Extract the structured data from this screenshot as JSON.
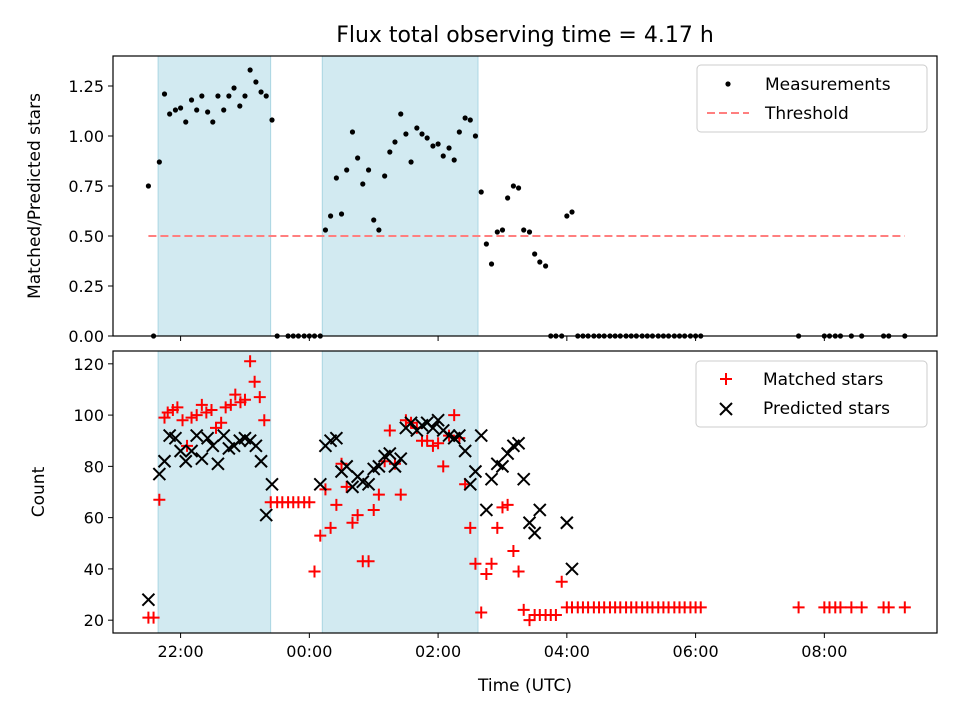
{
  "chart_data": [
    {
      "type": "scatter",
      "title": "Flux total observing time = 4.17 h",
      "ylabel": "Matched/Predicted stars",
      "ylim": [
        0,
        1.4
      ],
      "yticks": [
        0.0,
        0.25,
        0.5,
        0.75,
        1.0,
        1.25
      ],
      "ytick_labels": [
        "0.00",
        "0.25",
        "0.50",
        "0.75",
        "1.00",
        "1.25"
      ],
      "xlim_hours": [
        -3.05,
        9.75
      ],
      "shaded_spans_hours": [
        [
          -2.35,
          -0.6
        ],
        [
          0.2,
          2.62
        ]
      ],
      "shade_color": "#add8e6",
      "legend": {
        "placement": "upper right",
        "entries": [
          "Measurements",
          "Threshold"
        ]
      },
      "series": [
        {
          "name": "Measurements",
          "marker": "dot",
          "color": "#000000",
          "x": [
            -2.5,
            -2.42,
            -2.33,
            -2.25,
            -2.17,
            -2.08,
            -2.0,
            -1.92,
            -1.83,
            -1.75,
            -1.67,
            -1.58,
            -1.5,
            -1.42,
            -1.33,
            -1.25,
            -1.17,
            -1.08,
            -1.0,
            -0.92,
            -0.83,
            -0.75,
            -0.67,
            -0.58,
            -0.5,
            -0.33,
            -0.25,
            -0.17,
            -0.08,
            0.0,
            0.08,
            0.17,
            0.25,
            0.33,
            0.42,
            0.5,
            0.58,
            0.67,
            0.75,
            0.83,
            0.92,
            1.0,
            1.08,
            1.17,
            1.25,
            1.33,
            1.42,
            1.5,
            1.58,
            1.67,
            1.75,
            1.83,
            1.92,
            2.0,
            2.08,
            2.17,
            2.25,
            2.33,
            2.42,
            2.5,
            2.58,
            2.67,
            2.75,
            2.83,
            2.92,
            3.0,
            3.08,
            3.17,
            3.25,
            3.33,
            3.42,
            3.5,
            3.58,
            3.67,
            3.75,
            3.83,
            3.92,
            4.0,
            4.08,
            4.17,
            4.25,
            4.33,
            4.42,
            4.5,
            4.58,
            4.67,
            4.75,
            4.83,
            4.92,
            5.0,
            5.08,
            5.17,
            5.25,
            5.33,
            5.42,
            5.5,
            5.58,
            5.67,
            5.75,
            5.83,
            5.92,
            6.0,
            6.08,
            7.6,
            8.0,
            8.08,
            8.17,
            8.25,
            8.42,
            8.58,
            8.92,
            9.0,
            9.25
          ],
          "y": [
            0.75,
            0.0,
            0.87,
            1.21,
            1.11,
            1.13,
            1.14,
            1.07,
            1.18,
            1.13,
            1.2,
            1.12,
            1.07,
            1.2,
            1.13,
            1.2,
            1.24,
            1.15,
            1.2,
            1.33,
            1.27,
            1.22,
            1.2,
            1.08,
            0.0,
            0.0,
            0.0,
            0.0,
            0.0,
            0.0,
            0.0,
            0.0,
            0.53,
            0.6,
            0.79,
            0.61,
            0.83,
            1.02,
            0.89,
            0.76,
            0.83,
            0.58,
            0.53,
            0.8,
            0.92,
            0.97,
            1.11,
            1.01,
            0.87,
            1.04,
            1.01,
            0.99,
            0.95,
            0.96,
            0.9,
            0.94,
            0.88,
            1.02,
            1.09,
            1.08,
            1.0,
            0.72,
            0.46,
            0.36,
            0.52,
            0.53,
            0.69,
            0.75,
            0.74,
            0.53,
            0.52,
            0.41,
            0.37,
            0.35,
            0.0,
            0.0,
            0.0,
            0.6,
            0.62,
            0.0,
            0.0,
            0.0,
            0.0,
            0.0,
            0.0,
            0.0,
            0.0,
            0.0,
            0.0,
            0.0,
            0.0,
            0.0,
            0.0,
            0.0,
            0.0,
            0.0,
            0.0,
            0.0,
            0.0,
            0.0,
            0.0,
            0.0,
            0.0,
            0.0,
            0.0,
            0.0,
            0.0,
            0.0,
            0.0,
            0.0,
            0.0,
            0.0,
            0.0
          ]
        },
        {
          "name": "Threshold",
          "marker": "dashed-line",
          "color": "#ff7f7f",
          "x": [
            -2.5,
            9.25
          ],
          "y": [
            0.5,
            0.5
          ]
        }
      ]
    },
    {
      "type": "scatter",
      "ylabel": "Count",
      "xlabel": "Time (UTC)",
      "ylim": [
        15,
        125
      ],
      "yticks": [
        20,
        40,
        60,
        80,
        100,
        120
      ],
      "ytick_labels": [
        "20",
        "40",
        "60",
        "80",
        "100",
        "120"
      ],
      "xticks_hours": [
        -2,
        0,
        2,
        4,
        6,
        8
      ],
      "xtick_labels": [
        "22:00",
        "00:00",
        "02:00",
        "04:00",
        "06:00",
        "08:00"
      ],
      "xlim_hours": [
        -3.05,
        9.75
      ],
      "shaded_spans_hours": [
        [
          -2.35,
          -0.6
        ],
        [
          0.2,
          2.62
        ]
      ],
      "shade_color": "#add8e6",
      "legend": {
        "placement": "upper right",
        "entries": [
          "Matched stars",
          "Predicted stars"
        ]
      },
      "series": [
        {
          "name": "Matched stars",
          "marker": "plus",
          "color": "#ff0000",
          "x": [
            -2.5,
            -2.42,
            -2.33,
            -2.25,
            -2.2,
            -2.12,
            -2.05,
            -1.97,
            -1.9,
            -1.83,
            -1.75,
            -1.67,
            -1.6,
            -1.52,
            -1.45,
            -1.37,
            -1.3,
            -1.22,
            -1.15,
            -1.07,
            -1.0,
            -0.92,
            -0.85,
            -0.77,
            -0.7,
            -0.6,
            -0.5,
            -0.42,
            -0.33,
            -0.25,
            -0.17,
            -0.08,
            0.0,
            0.08,
            0.17,
            0.25,
            0.33,
            0.42,
            0.5,
            0.58,
            0.67,
            0.75,
            0.83,
            0.92,
            1.0,
            1.08,
            1.17,
            1.25,
            1.33,
            1.42,
            1.5,
            1.58,
            1.67,
            1.75,
            1.83,
            1.92,
            2.0,
            2.08,
            2.17,
            2.25,
            2.33,
            2.42,
            2.5,
            2.58,
            2.67,
            2.75,
            2.83,
            2.92,
            3.0,
            3.08,
            3.17,
            3.25,
            3.33,
            3.42,
            3.5,
            3.58,
            3.67,
            3.75,
            3.83,
            3.92,
            4.0,
            4.08,
            4.17,
            4.25,
            4.33,
            4.42,
            4.5,
            4.58,
            4.67,
            4.75,
            4.83,
            4.92,
            5.0,
            5.08,
            5.17,
            5.25,
            5.33,
            5.42,
            5.5,
            5.58,
            5.67,
            5.75,
            5.83,
            5.92,
            6.0,
            6.08,
            7.6,
            8.0,
            8.08,
            8.17,
            8.25,
            8.42,
            8.58,
            8.92,
            9.0,
            9.25
          ],
          "y": [
            21,
            21,
            67,
            99,
            101,
            102,
            103,
            98,
            88,
            99,
            100,
            104,
            101,
            102,
            95,
            97,
            103,
            104,
            108,
            105,
            106,
            121,
            113,
            107,
            98,
            66,
            66,
            66,
            66,
            66,
            66,
            66,
            66,
            39,
            53,
            71,
            56,
            65,
            81,
            72,
            58,
            61,
            43,
            43,
            63,
            69,
            82,
            94,
            81,
            69,
            98,
            97,
            95,
            90,
            90,
            88,
            89,
            80,
            92,
            100,
            91,
            73,
            56,
            42,
            23,
            38,
            42,
            56,
            64,
            65,
            47,
            39,
            24,
            20,
            22,
            22,
            22,
            22,
            22,
            35,
            25,
            25,
            25,
            25,
            25,
            25,
            25,
            25,
            25,
            25,
            25,
            25,
            25,
            25,
            25,
            25,
            25,
            25,
            25,
            25,
            25,
            25,
            25,
            25,
            25,
            25,
            25,
            25,
            25,
            25,
            25,
            25,
            25,
            25,
            25,
            25
          ]
        },
        {
          "name": "Predicted stars",
          "marker": "x",
          "color": "#000000",
          "x": [
            -2.5,
            -2.33,
            -2.25,
            -2.17,
            -2.08,
            -2.0,
            -1.92,
            -1.83,
            -1.75,
            -1.67,
            -1.58,
            -1.5,
            -1.42,
            -1.33,
            -1.25,
            -1.17,
            -1.08,
            -1.0,
            -0.92,
            -0.83,
            -0.75,
            -0.67,
            -0.58,
            0.17,
            0.25,
            0.33,
            0.42,
            0.5,
            0.58,
            0.67,
            0.75,
            0.83,
            0.92,
            1.0,
            1.08,
            1.17,
            1.25,
            1.33,
            1.42,
            1.5,
            1.58,
            1.67,
            1.75,
            1.83,
            1.92,
            2.0,
            2.08,
            2.17,
            2.25,
            2.33,
            2.42,
            2.5,
            2.58,
            2.67,
            2.75,
            2.83,
            2.92,
            3.0,
            3.08,
            3.17,
            3.25,
            3.33,
            3.42,
            3.5,
            3.58,
            4.0,
            4.08
          ],
          "y": [
            28,
            77,
            82,
            92,
            91,
            86,
            82,
            86,
            92,
            83,
            91,
            88,
            81,
            92,
            87,
            88,
            90,
            91,
            90,
            88,
            82,
            61,
            73,
            73,
            88,
            90,
            91,
            78,
            80,
            72,
            76,
            74,
            73,
            79,
            80,
            84,
            85,
            80,
            83,
            95,
            97,
            94,
            96,
            97,
            95,
            98,
            94,
            92,
            91,
            92,
            86,
            73,
            78,
            92,
            63,
            75,
            81,
            80,
            85,
            88,
            89,
            75,
            58,
            54,
            63,
            58,
            40
          ]
        }
      ]
    }
  ]
}
